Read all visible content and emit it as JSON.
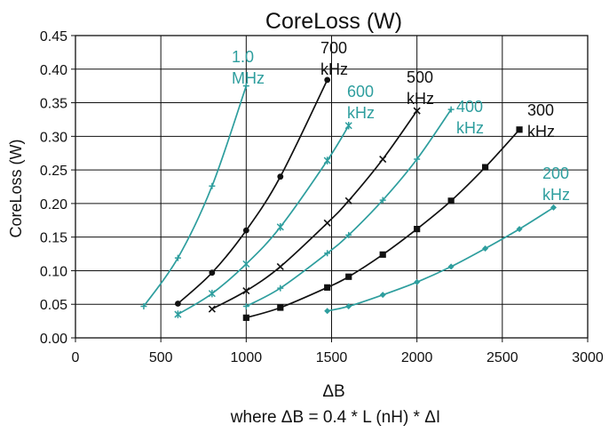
{
  "chart_data": {
    "type": "line",
    "title": "CoreLoss (W)",
    "xlabel": "ΔB",
    "xlabel_note": "where ΔB = 0.4 * L (nH) * ΔI",
    "ylabel": "CoreLoss (W)",
    "xlim": [
      0,
      3000
    ],
    "ylim": [
      0,
      0.45
    ],
    "x_ticks": [
      "0",
      "500",
      "1000",
      "1500",
      "2000",
      "2500",
      "3000"
    ],
    "x_tick_values": [
      0,
      500,
      1000,
      1500,
      2000,
      2500,
      3000
    ],
    "y_ticks": [
      "0.00",
      "0.05",
      "0.10",
      "0.15",
      "0.20",
      "0.25",
      "0.30",
      "0.35",
      "0.40",
      "0.45"
    ],
    "y_tick_values": [
      0,
      0.05,
      0.1,
      0.15,
      0.2,
      0.25,
      0.3,
      0.35,
      0.4,
      0.45
    ],
    "grid": true,
    "legend": "none",
    "series": [
      {
        "label_lines": [
          "1.0",
          "MHz"
        ],
        "color": "#2e9e9e",
        "marker": "plus",
        "x": [
          400,
          600,
          800,
          1000
        ],
        "y": [
          0.047,
          0.119,
          0.226,
          0.375
        ]
      },
      {
        "label_lines": [
          "700",
          "kHz"
        ],
        "color": "#111111",
        "marker": "circle",
        "x": [
          600,
          800,
          1000,
          1200,
          1475
        ],
        "y": [
          0.051,
          0.097,
          0.16,
          0.24,
          0.384
        ]
      },
      {
        "label_lines": [
          "600",
          "kHz"
        ],
        "color": "#2e9e9e",
        "marker": "star",
        "x": [
          600,
          800,
          1000,
          1200,
          1475,
          1600
        ],
        "y": [
          0.035,
          0.066,
          0.11,
          0.165,
          0.264,
          0.316
        ]
      },
      {
        "label_lines": [
          "500",
          "kHz"
        ],
        "color": "#111111",
        "marker": "cross",
        "x": [
          800,
          1000,
          1200,
          1475,
          1600,
          1800,
          2000
        ],
        "y": [
          0.043,
          0.07,
          0.106,
          0.171,
          0.204,
          0.266,
          0.338
        ]
      },
      {
        "label_lines": [
          "400",
          "kHz"
        ],
        "color": "#2e9e9e",
        "marker": "plus",
        "x": [
          1000,
          1200,
          1475,
          1600,
          1800,
          2000,
          2200
        ],
        "y": [
          0.047,
          0.074,
          0.126,
          0.153,
          0.205,
          0.266,
          0.34
        ]
      },
      {
        "label_lines": [
          "300",
          "kHz"
        ],
        "color": "#111111",
        "marker": "square",
        "x": [
          1000,
          1200,
          1475,
          1600,
          1800,
          2000,
          2200,
          2400,
          2600
        ],
        "y": [
          0.03,
          0.045,
          0.075,
          0.091,
          0.124,
          0.162,
          0.204,
          0.254,
          0.31
        ]
      },
      {
        "label_lines": [
          "200",
          "kHz"
        ],
        "color": "#2e9e9e",
        "marker": "diamond",
        "x": [
          1475,
          1600,
          1800,
          2000,
          2200,
          2400,
          2600,
          2800
        ],
        "y": [
          0.04,
          0.047,
          0.064,
          0.083,
          0.106,
          0.133,
          0.162,
          0.194
        ]
      }
    ]
  }
}
